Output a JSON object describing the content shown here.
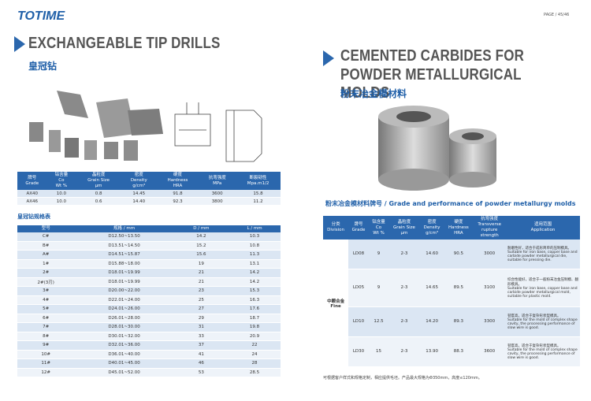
{
  "header": {
    "logo": "TOTIME",
    "page": "PAGE / 45/46"
  },
  "left": {
    "title": "EXCHANGEABLE TIP DRILLS",
    "subtitle": "皇冠钻",
    "grade_table": {
      "columns": [
        [
          "牌号",
          "Grade"
        ],
        [
          "钴含量",
          "Co",
          "Wt %"
        ],
        [
          "晶粒度",
          "Grain Size",
          "μm"
        ],
        [
          "密度",
          "Density",
          "g/cm³"
        ],
        [
          "硬度",
          "Hardness",
          "HRA"
        ],
        [
          "抗弯强度",
          "MPa"
        ],
        [
          "断裂韧性",
          "Mpa.m1/2"
        ]
      ],
      "rows": [
        [
          "AX40",
          "10.0",
          "0.8",
          "14.45",
          "91.8",
          "3600",
          "15.8"
        ],
        [
          "AX46",
          "10.0",
          "0.6",
          "14.40",
          "92.3",
          "3800",
          "11.2"
        ]
      ]
    },
    "spec_title": "皇冠钻规格表",
    "spec_table": {
      "columns": [
        [
          "型号"
        ],
        [
          "规格 / mm"
        ],
        [
          "D / mm"
        ],
        [
          "L / mm"
        ]
      ],
      "rows": [
        [
          "C#",
          "D12.50~13.50",
          "14.2",
          "10.3"
        ],
        [
          "B#",
          "D13.51~14.50",
          "15.2",
          "10.8"
        ],
        [
          "A#",
          "D14.51~15.87",
          "15.6",
          "11.3"
        ],
        [
          "1#",
          "D15.88~18.00",
          "19",
          "13.1"
        ],
        [
          "2#",
          "D18.01~19.99",
          "21",
          "14.2"
        ],
        [
          "2#(3刃)",
          "D18.01~19.99",
          "21",
          "14.2"
        ],
        [
          "3#",
          "D20.00~22.00",
          "23",
          "15.3"
        ],
        [
          "4#",
          "D22.01~24.00",
          "25",
          "16.3"
        ],
        [
          "5#",
          "D24.01~26.00",
          "27",
          "17.6"
        ],
        [
          "6#",
          "D26.01~28.00",
          "29",
          "18.7"
        ],
        [
          "7#",
          "D28.01~30.00",
          "31",
          "19.8"
        ],
        [
          "8#",
          "D30.01~32.00",
          "33",
          "20.9"
        ],
        [
          "9#",
          "D32.01~36.00",
          "37",
          "22"
        ],
        [
          "10#",
          "D36.01~40.00",
          "41",
          "24"
        ],
        [
          "11#",
          "D40.01~45.00",
          "46",
          "28"
        ],
        [
          "12#",
          "D45.01~52.00",
          "53",
          "28.5"
        ]
      ]
    }
  },
  "right": {
    "title_lines": [
      "CEMENTED CARBIDES FOR",
      "POWDER METALLURGICAL MOLDS"
    ],
    "subtitle": "粉末冶金模材料",
    "section_title": "粉末冶金模材料牌号 / Grade and performance of powder metallurgy molds",
    "table": {
      "columns": [
        [
          "分类",
          "Division"
        ],
        [
          "牌号",
          "Grade"
        ],
        [
          "钴含量",
          "Co",
          "Wt %"
        ],
        [
          "晶粒度",
          "Grain Size",
          "μm"
        ],
        [
          "密度",
          "Density",
          "g/cm³"
        ],
        [
          "硬度",
          "Hardness",
          "HRA"
        ],
        [
          "抗弯强度",
          "Transverse",
          "rupture",
          "strength"
        ],
        [
          "适用范围",
          "Application"
        ]
      ],
      "division": [
        "中颗合金",
        "Fine"
      ],
      "rows": [
        [
          "LD08",
          "9",
          "2-3",
          "14.60",
          "90.5",
          "3000",
          [
            "耐磨性好，适合于成形简单的压制模具。",
            "Suitable for iron base, copper base and carbide powder metallurgical die, suitable for pressing die."
          ]
        ],
        [
          "LD05",
          "9",
          "2-3",
          "14.65",
          "89.5",
          "3100",
          [
            "综合性能好，适合于一般粉末冶金压制模、翻形模具。",
            "Suitable for iron base, copper base and carbide powder metallurgical mold, suitable for plastic mold."
          ]
        ],
        [
          "LD10",
          "12.5",
          "2-3",
          "14.20",
          "89.3",
          "3300",
          [
            "韧度高，适合于复杂形状型模具。",
            "Suitable for the mold of complex shape cavity, the processing performance of slow wire is good."
          ]
        ],
        [
          "LD30",
          "15",
          "2-3",
          "13.90",
          "88.3",
          "3600",
          [
            "韧度高，适合于复杂形状型模具。",
            "Suitable for the mold of complex shape cavity, the processing performance of slow wire is good."
          ]
        ]
      ]
    },
    "footnote": "可根据客户样式和规格定制，相应提供毛坯。产品最大规格为Φ350mm，高度≤120mm。"
  }
}
